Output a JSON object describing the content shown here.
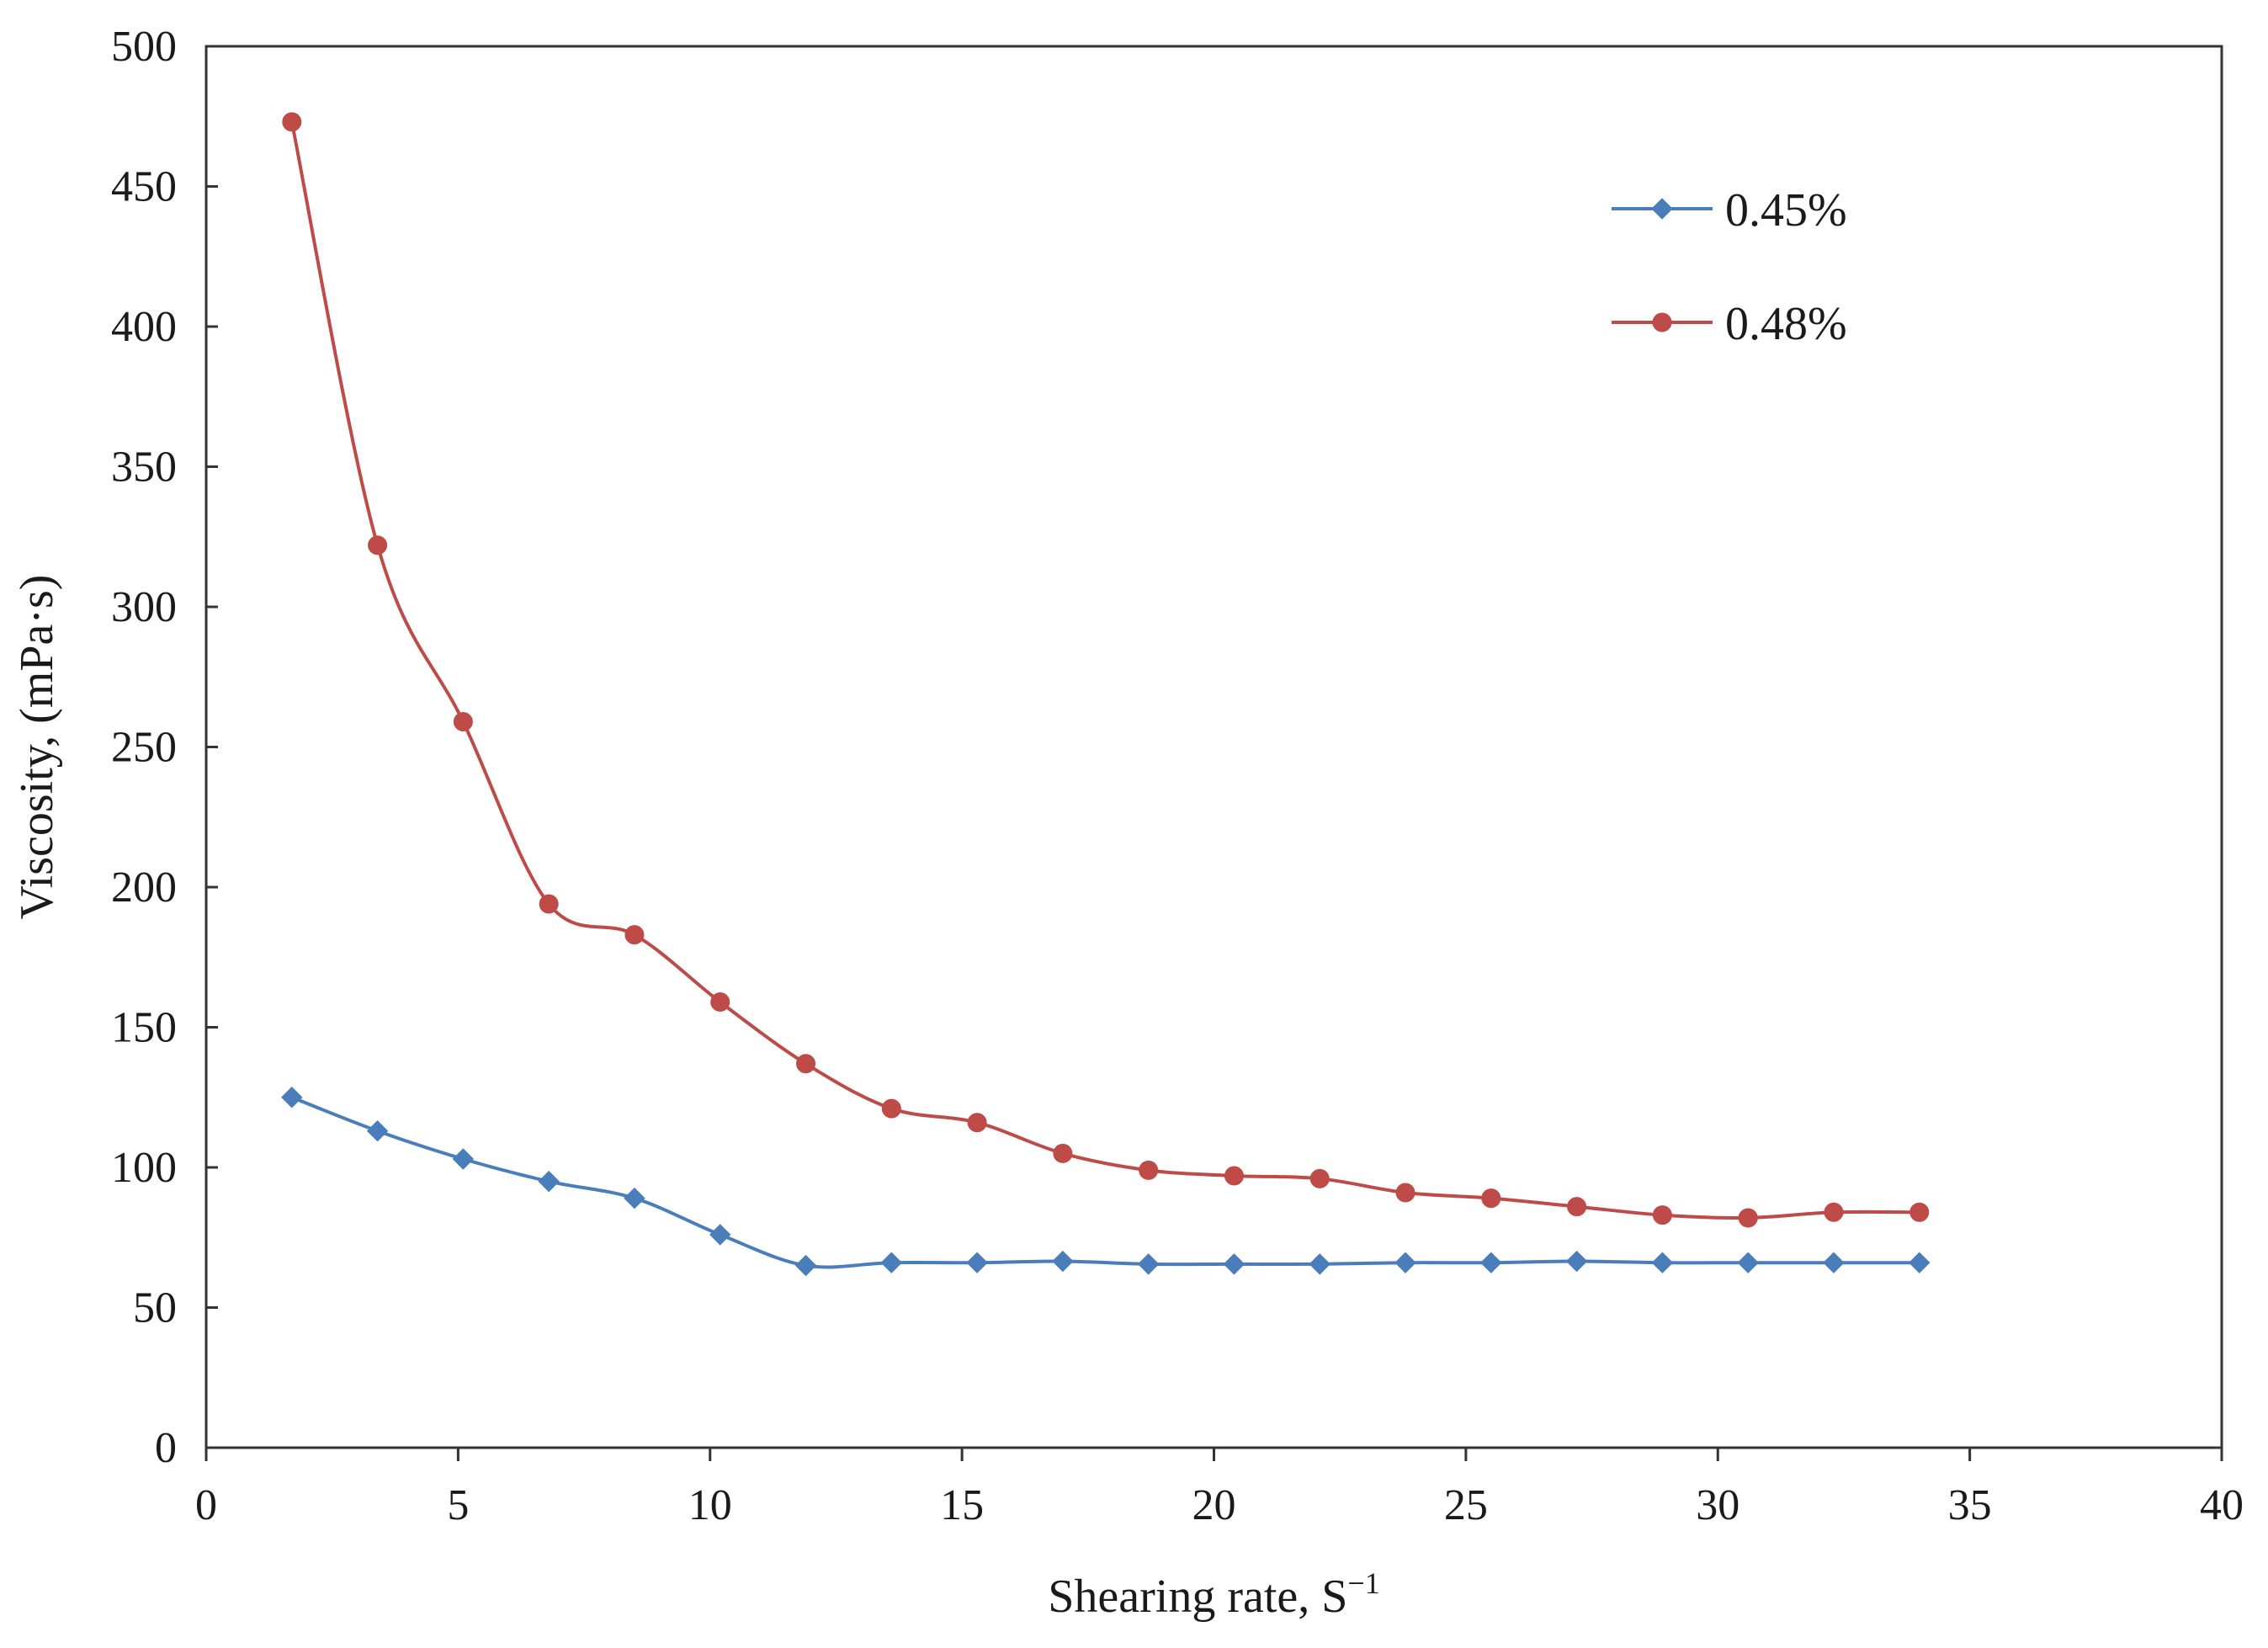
{
  "chart_data": {
    "type": "line",
    "title": "",
    "xlabel": "Shearing rate, S",
    "xlabel_sup": "−1",
    "ylabel": "Viscosity, (mPa·s)",
    "xlim": [
      0,
      40
    ],
    "ylim": [
      0,
      500
    ],
    "xticks": [
      0,
      5,
      10,
      15,
      20,
      25,
      30,
      35,
      40
    ],
    "yticks": [
      0,
      50,
      100,
      150,
      200,
      250,
      300,
      350,
      400,
      450,
      500
    ],
    "grid": false,
    "legend_position": "top-right",
    "series": [
      {
        "name": "0.45%",
        "color": "#4a7ebb",
        "marker": "diamond",
        "x": [
          1.7,
          3.4,
          5.1,
          6.8,
          8.5,
          10.2,
          11.9,
          13.6,
          15.3,
          17.0,
          18.7,
          20.4,
          22.1,
          23.8,
          25.5,
          27.2,
          28.9,
          30.6,
          32.3,
          34.0
        ],
        "y": [
          125,
          113,
          103,
          95,
          89,
          76,
          65,
          66,
          66,
          66.5,
          65.5,
          65.5,
          65.5,
          66,
          66,
          66.5,
          66,
          66,
          66,
          66
        ]
      },
      {
        "name": "0.48%",
        "color": "#be4b48",
        "marker": "circle",
        "x": [
          1.7,
          3.4,
          5.1,
          6.8,
          8.5,
          10.2,
          11.9,
          13.6,
          15.3,
          17.0,
          18.7,
          20.4,
          22.1,
          23.8,
          25.5,
          27.2,
          28.9,
          30.6,
          32.3,
          34.0
        ],
        "y": [
          473,
          322,
          259,
          194,
          183,
          159,
          137,
          121,
          116,
          105,
          99,
          97,
          96,
          91,
          89,
          86,
          83,
          82,
          84,
          84
        ]
      }
    ]
  }
}
